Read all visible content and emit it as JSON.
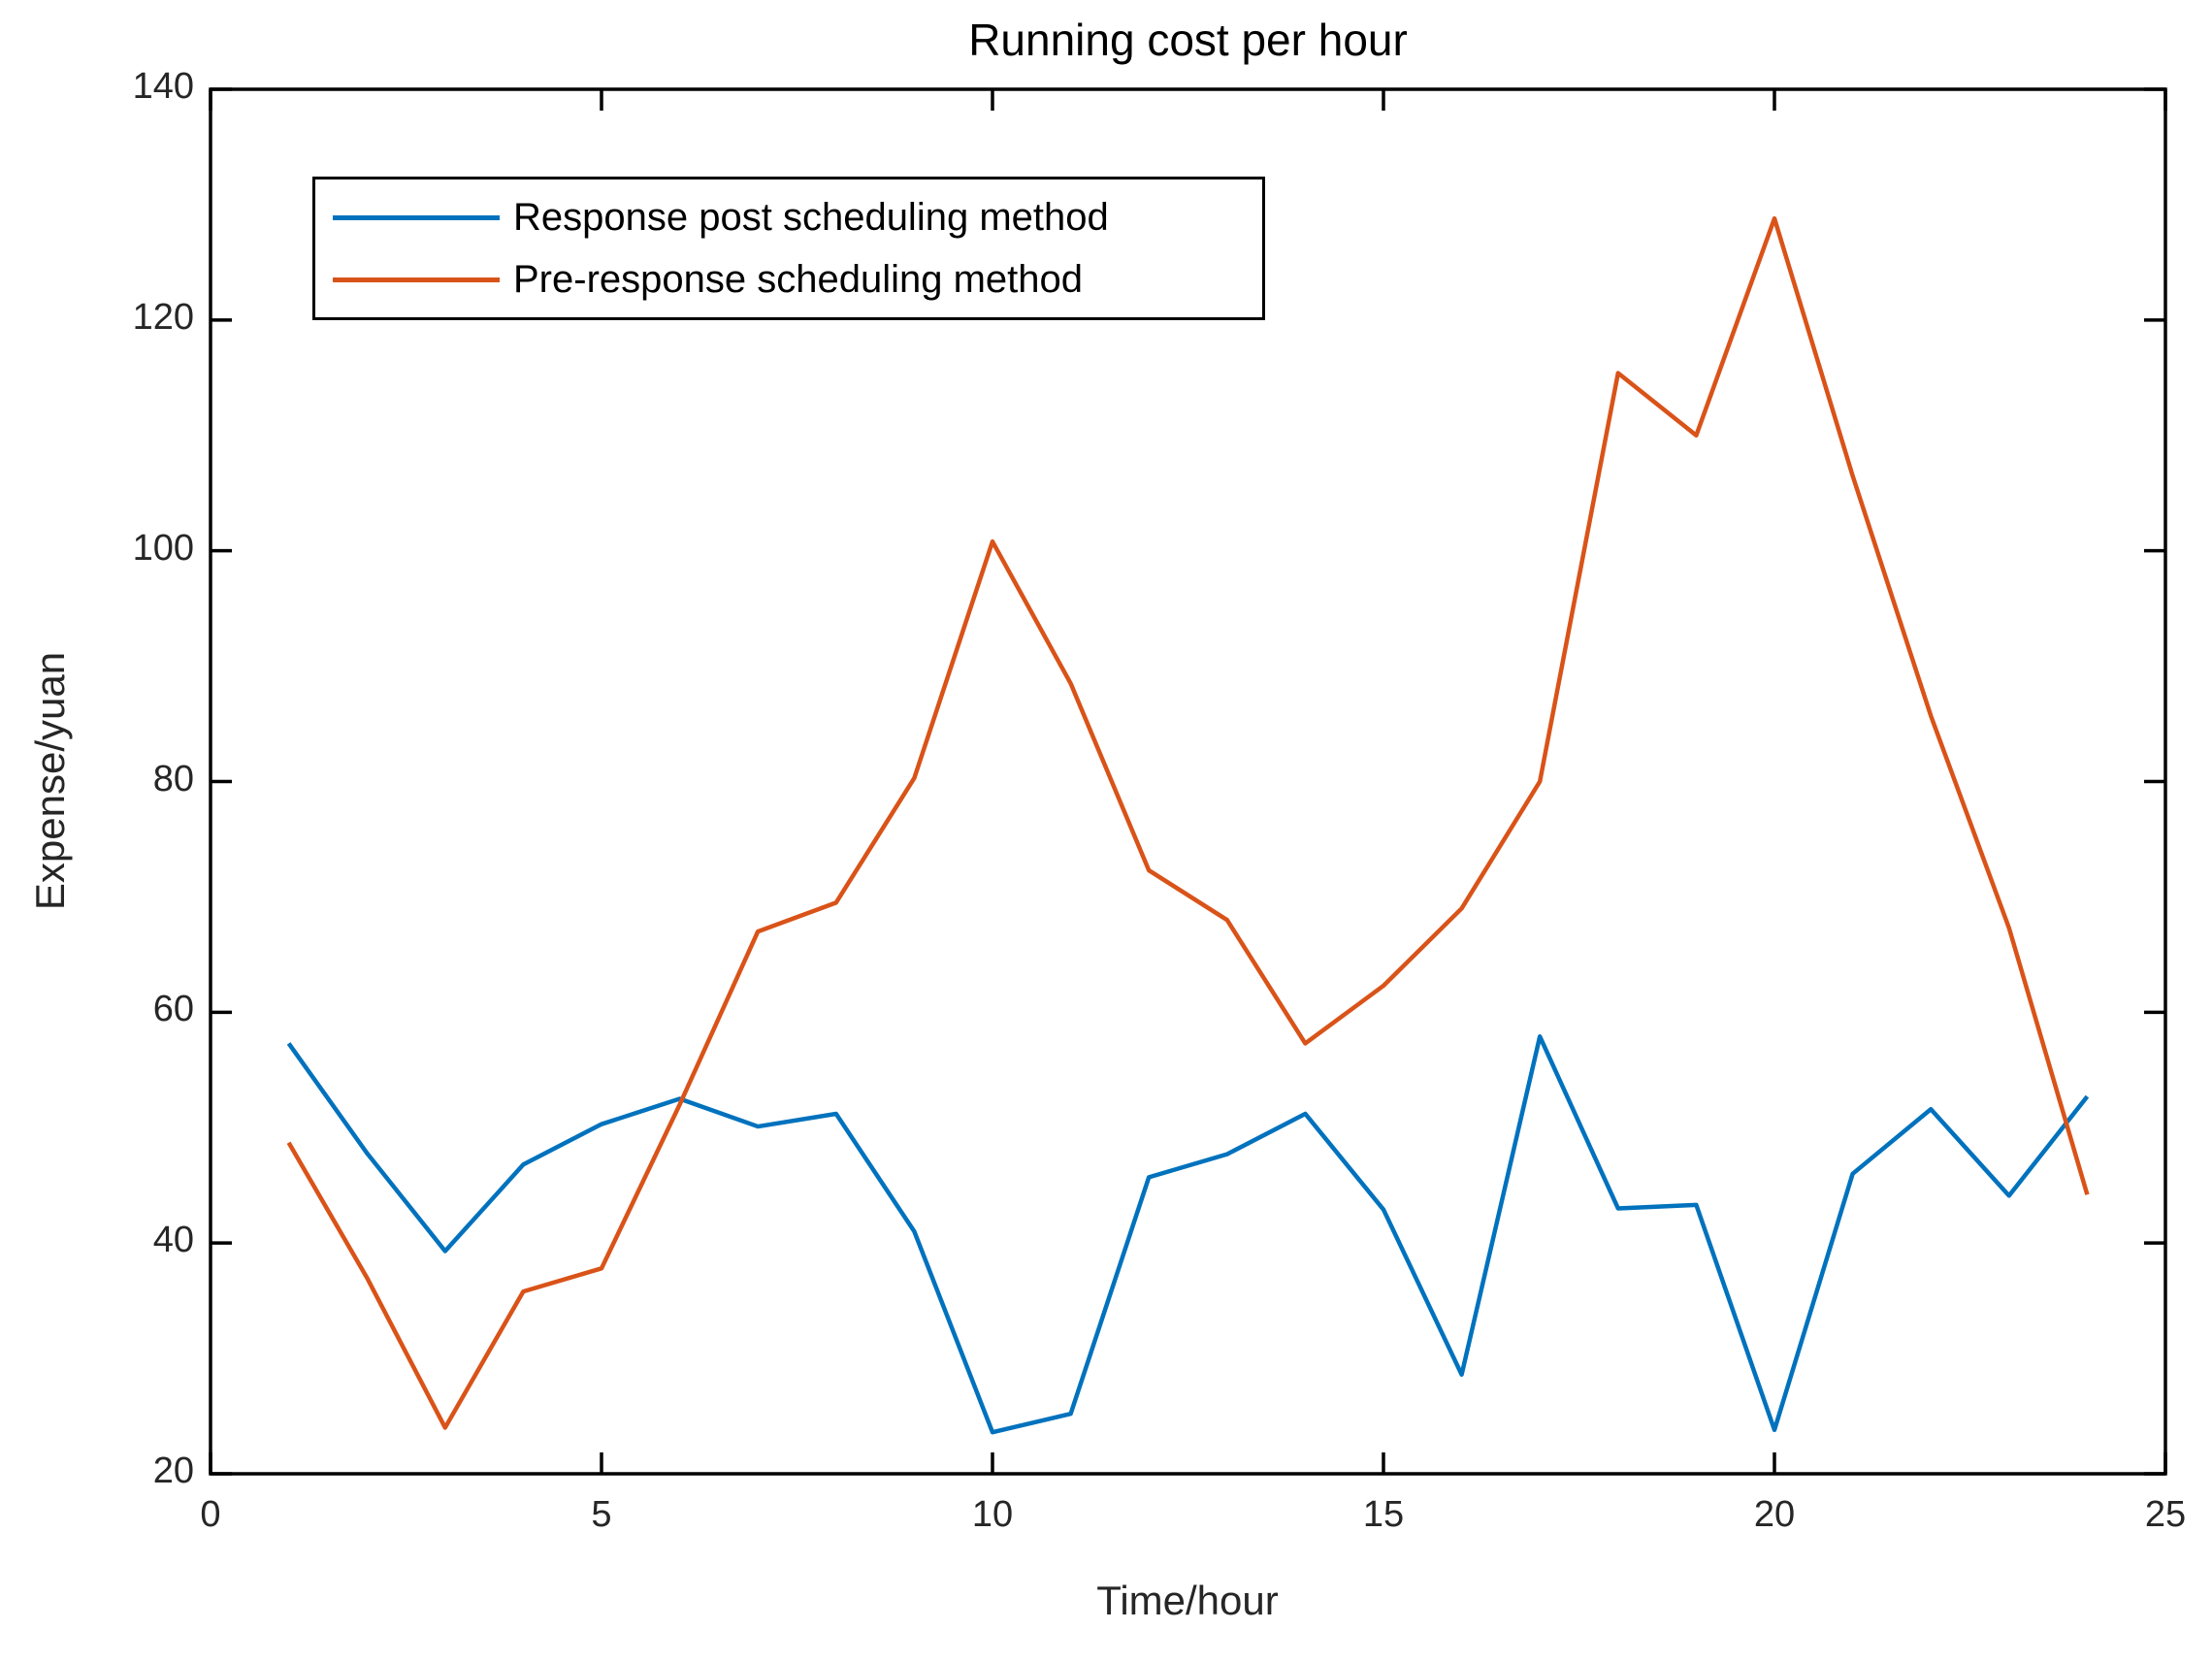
{
  "title": "Running cost per hour",
  "axes": {
    "xlabel": "Time/hour",
    "ylabel": "Expense/yuan"
  },
  "legend": {
    "entries": [
      {
        "label": "Response post scheduling method",
        "color": "#0072BD"
      },
      {
        "label": "Pre-response scheduling method",
        "color": "#D95319"
      }
    ],
    "position": "top-left-inside",
    "border_color": "#000000"
  },
  "colors": {
    "axis_box": "#000000",
    "tick_text": "#262626",
    "series_blue": "#0072BD",
    "series_orange": "#D95319",
    "background": "#ffffff"
  },
  "chart_data": {
    "type": "line",
    "title": "Running cost per hour",
    "xlabel": "Time/hour",
    "ylabel": "Expense/yuan",
    "xlim": [
      0,
      25
    ],
    "ylim": [
      20,
      140
    ],
    "xticks": [
      0,
      5,
      10,
      15,
      20,
      25
    ],
    "yticks": [
      20,
      40,
      60,
      80,
      100,
      120,
      140
    ],
    "grid": false,
    "legend_position": "top-left-inside",
    "x": [
      1,
      2,
      3,
      4,
      5,
      6,
      7,
      8,
      9,
      10,
      11,
      12,
      13,
      14,
      15,
      16,
      17,
      18,
      19,
      20,
      21,
      22,
      23,
      24
    ],
    "series": [
      {
        "name": "Response post scheduling method",
        "color": "#0072BD",
        "values": [
          57.3,
          47.8,
          39.3,
          46.8,
          50.3,
          52.5,
          50.1,
          51.2,
          41.0,
          23.6,
          25.2,
          45.7,
          47.7,
          51.2,
          42.9,
          28.6,
          57.9,
          43.0,
          43.3,
          23.8,
          46.0,
          51.6,
          44.1,
          52.7
        ]
      },
      {
        "name": "Pre-response scheduling method",
        "color": "#D95319",
        "values": [
          48.7,
          37.0,
          24.0,
          35.8,
          37.8,
          52.0,
          67.0,
          69.5,
          80.3,
          100.8,
          88.5,
          72.3,
          68.0,
          57.3,
          62.3,
          69.0,
          80.0,
          115.4,
          110.0,
          128.8,
          106.5,
          85.7,
          67.3,
          44.2
        ]
      }
    ]
  }
}
